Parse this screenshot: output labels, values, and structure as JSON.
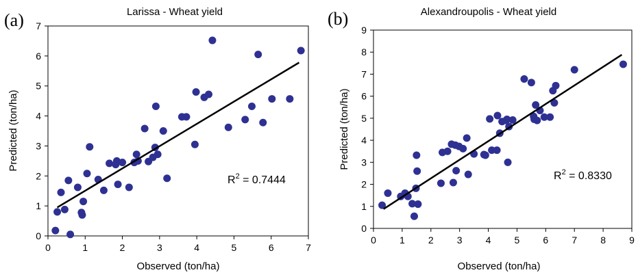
{
  "colors": {
    "point": "#2E3192",
    "line": "#000000",
    "frame": "#000000"
  },
  "chart_data": [
    {
      "type": "scatter",
      "panel_label": "(a)",
      "title": "Larissa - Wheat yield",
      "xlabel": "Observed (ton/ha)",
      "ylabel": "Predicted (ton/ha)",
      "xlim": [
        0,
        7
      ],
      "ylim": [
        0,
        7
      ],
      "xticks": [
        "0",
        "1",
        "2",
        "3",
        "4",
        "5",
        "6",
        "7"
      ],
      "yticks": [
        "0",
        "1",
        "2",
        "3",
        "4",
        "5",
        "6",
        "7"
      ],
      "grid": false,
      "r2_label": "R",
      "r2_sup": "2",
      "r2_value": " = 0.7444",
      "trendline": {
        "x": [
          0.25,
          6.75
        ],
        "y": [
          0.95,
          5.78
        ]
      },
      "points": [
        [
          0.2,
          0.18
        ],
        [
          0.25,
          0.8
        ],
        [
          0.35,
          1.45
        ],
        [
          0.45,
          0.88
        ],
        [
          0.55,
          1.85
        ],
        [
          0.6,
          0.05
        ],
        [
          0.8,
          1.62
        ],
        [
          0.9,
          0.78
        ],
        [
          0.92,
          0.7
        ],
        [
          0.95,
          1.15
        ],
        [
          1.05,
          2.08
        ],
        [
          1.12,
          2.97
        ],
        [
          1.35,
          1.88
        ],
        [
          1.5,
          1.52
        ],
        [
          1.65,
          2.42
        ],
        [
          1.82,
          2.38
        ],
        [
          1.85,
          2.5
        ],
        [
          1.88,
          1.72
        ],
        [
          2.0,
          2.45
        ],
        [
          2.18,
          1.62
        ],
        [
          2.32,
          2.45
        ],
        [
          2.38,
          2.72
        ],
        [
          2.42,
          2.5
        ],
        [
          2.6,
          3.58
        ],
        [
          2.7,
          2.48
        ],
        [
          2.82,
          2.62
        ],
        [
          2.88,
          2.95
        ],
        [
          2.9,
          4.32
        ],
        [
          2.95,
          2.72
        ],
        [
          3.1,
          3.5
        ],
        [
          3.2,
          1.92
        ],
        [
          3.6,
          3.97
        ],
        [
          3.72,
          3.97
        ],
        [
          3.95,
          3.05
        ],
        [
          3.98,
          4.8
        ],
        [
          4.2,
          4.62
        ],
        [
          4.32,
          4.72
        ],
        [
          4.42,
          6.52
        ],
        [
          4.85,
          3.62
        ],
        [
          5.3,
          3.88
        ],
        [
          5.48,
          4.32
        ],
        [
          5.65,
          6.05
        ],
        [
          5.78,
          3.78
        ],
        [
          6.02,
          4.57
        ],
        [
          6.5,
          4.57
        ],
        [
          6.8,
          6.18
        ]
      ]
    },
    {
      "type": "scatter",
      "panel_label": "(b)",
      "title": "Alexandroupolis - Wheat yield",
      "xlabel": "Observed (ton/ha)",
      "ylabel": "Predicted (ton/ha)",
      "xlim": [
        0,
        9
      ],
      "ylim": [
        0,
        9
      ],
      "xticks": [
        "0",
        "1",
        "2",
        "3",
        "4",
        "5",
        "6",
        "7",
        "8",
        "9"
      ],
      "yticks": [
        "0",
        "1",
        "2",
        "3",
        "4",
        "5",
        "6",
        "7",
        "8",
        "9"
      ],
      "grid": false,
      "r2_label": "R",
      "r2_sup": "2",
      "r2_value": " = 0.8330",
      "trendline": {
        "x": [
          0.35,
          8.65
        ],
        "y": [
          0.88,
          7.88
        ]
      },
      "points": [
        [
          0.3,
          1.05
        ],
        [
          0.5,
          1.6
        ],
        [
          0.95,
          1.45
        ],
        [
          1.1,
          1.6
        ],
        [
          1.2,
          1.45
        ],
        [
          1.35,
          1.12
        ],
        [
          1.42,
          0.55
        ],
        [
          1.48,
          1.82
        ],
        [
          1.5,
          3.32
        ],
        [
          1.52,
          2.6
        ],
        [
          1.55,
          1.1
        ],
        [
          2.35,
          2.05
        ],
        [
          2.4,
          3.45
        ],
        [
          2.58,
          3.5
        ],
        [
          2.72,
          3.82
        ],
        [
          2.78,
          2.08
        ],
        [
          2.85,
          3.78
        ],
        [
          2.88,
          2.62
        ],
        [
          2.98,
          3.72
        ],
        [
          3.12,
          3.62
        ],
        [
          3.25,
          4.1
        ],
        [
          3.3,
          2.45
        ],
        [
          3.5,
          3.38
        ],
        [
          3.85,
          3.35
        ],
        [
          3.9,
          3.32
        ],
        [
          4.05,
          4.97
        ],
        [
          4.12,
          3.55
        ],
        [
          4.3,
          3.55
        ],
        [
          4.32,
          5.12
        ],
        [
          4.4,
          4.32
        ],
        [
          4.48,
          4.85
        ],
        [
          4.62,
          4.9
        ],
        [
          4.65,
          4.95
        ],
        [
          4.68,
          3.0
        ],
        [
          4.72,
          4.62
        ],
        [
          4.85,
          4.92
        ],
        [
          5.25,
          6.78
        ],
        [
          5.5,
          6.62
        ],
        [
          5.58,
          5.08
        ],
        [
          5.6,
          4.95
        ],
        [
          5.65,
          5.6
        ],
        [
          5.7,
          4.9
        ],
        [
          5.8,
          5.35
        ],
        [
          5.95,
          5.05
        ],
        [
          6.15,
          5.05
        ],
        [
          6.25,
          6.25
        ],
        [
          6.3,
          5.7
        ],
        [
          6.35,
          6.48
        ],
        [
          7.0,
          7.2
        ],
        [
          8.7,
          7.45
        ]
      ]
    }
  ]
}
